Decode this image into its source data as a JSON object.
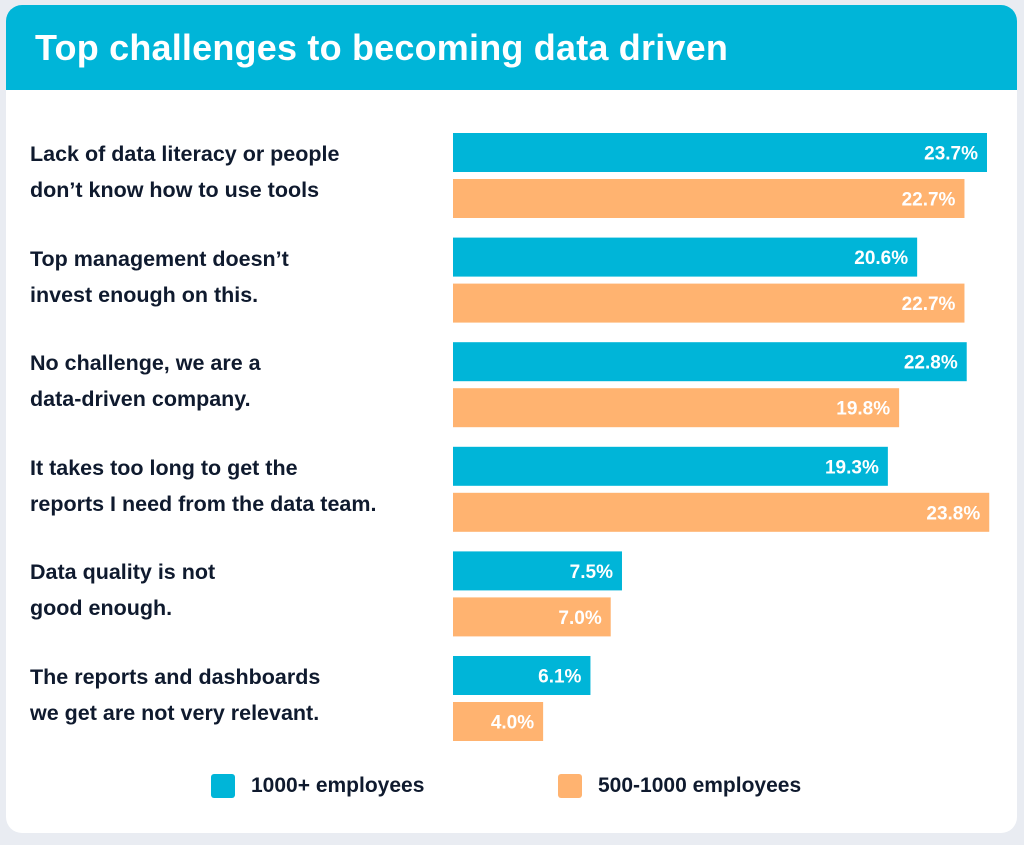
{
  "chart_data": {
    "type": "bar",
    "orientation": "horizontal",
    "title": "Top challenges to becoming data driven",
    "categories": [
      [
        "Lack of data literacy or people",
        "don’t know how to use tools"
      ],
      [
        "Top management doesn’t",
        "invest enough on this."
      ],
      [
        "No challenge, we are a",
        "data-driven company."
      ],
      [
        "It takes too long to get the",
        "reports I need from the data team."
      ],
      [
        "Data quality is not",
        "good enough."
      ],
      [
        "The reports and dashboards",
        "we get are not very relevant."
      ]
    ],
    "series": [
      {
        "name": "1000+ employees",
        "color": "#00b5d8",
        "values": [
          23.7,
          20.6,
          22.8,
          19.3,
          7.5,
          6.1
        ]
      },
      {
        "name": "500-1000 employees",
        "color": "#ffb370",
        "values": [
          22.7,
          22.7,
          19.8,
          23.8,
          7.0,
          4.0
        ]
      }
    ],
    "value_format": "percent, 1 decimal",
    "data_labels": "inside bar end",
    "legend": "bottom-center",
    "grid": false
  }
}
